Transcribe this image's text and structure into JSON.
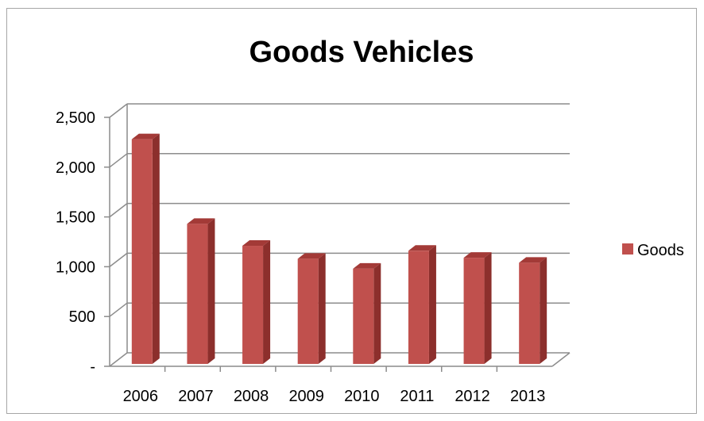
{
  "chart_data": {
    "type": "bar",
    "title": "Goods Vehicles",
    "categories": [
      "2006",
      "2007",
      "2008",
      "2009",
      "2010",
      "2011",
      "2012",
      "2013"
    ],
    "series": [
      {
        "name": "Goods",
        "values": [
          2280,
          1430,
          1210,
          1080,
          980,
          1160,
          1090,
          1040
        ]
      }
    ],
    "ylim": [
      0,
      2500
    ],
    "yticks": [
      {
        "value": 0,
        "label": "-"
      },
      {
        "value": 500,
        "label": "500"
      },
      {
        "value": 1000,
        "label": "1,000"
      },
      {
        "value": 1500,
        "label": "1,500"
      },
      {
        "value": 2000,
        "label": "2,000"
      },
      {
        "value": 2500,
        "label": "2,500"
      }
    ],
    "grid": true,
    "legend_position": "right",
    "colors": {
      "bar_front": "#c0504d",
      "bar_side": "#8c2f2c",
      "bar_top": "#a33a37",
      "grid": "#8c8c8c"
    }
  }
}
